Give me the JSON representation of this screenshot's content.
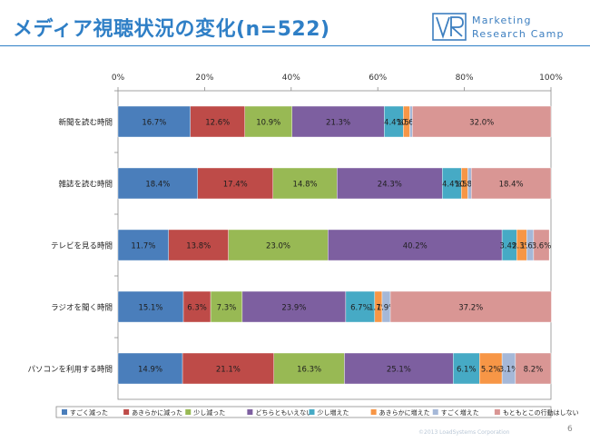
{
  "slide": {
    "title": "メディア視聴状況の変化(n=522)",
    "logo_line1": "Marketing",
    "logo_line2": "Research Camp",
    "copyright": "©2013 LoadSystems Corporation",
    "page_number": "6"
  },
  "colors": {
    "accent": "#2f7fc6",
    "series": [
      "#4a7ebb",
      "#be4b48",
      "#98b954",
      "#7d5fa0",
      "#46aac5",
      "#f79646",
      "#a5b8d8",
      "#d99694"
    ]
  },
  "chart_data": {
    "type": "bar",
    "orientation": "horizontal",
    "stacked": "percent",
    "categories": [
      "新聞を読む時間",
      "雑誌を読む時間",
      "テレビを見る時間",
      "ラジオを聞く時間",
      "パソコンを利用する時間"
    ],
    "x_ticks": [
      "0%",
      "20%",
      "40%",
      "60%",
      "80%",
      "100%"
    ],
    "xlim": [
      0,
      100
    ],
    "legend_position": "bottom",
    "grid": false,
    "series": [
      {
        "name": "すごく減った",
        "color": "#4a7ebb",
        "values": [
          16.7,
          18.4,
          11.7,
          15.1,
          14.9
        ],
        "labels": [
          "16.7%",
          "18.4%",
          "11.7%",
          "15.1%",
          "14.9%"
        ]
      },
      {
        "name": "あきらかに減った",
        "color": "#be4b48",
        "values": [
          12.6,
          17.4,
          13.8,
          6.3,
          21.1
        ],
        "labels": [
          "12.6%",
          "17.4%",
          "13.8%",
          "6.3%",
          "21.1%"
        ]
      },
      {
        "name": "少し減った",
        "color": "#98b954",
        "values": [
          10.9,
          14.8,
          23.0,
          7.3,
          16.3
        ],
        "labels": [
          "10.9%",
          "14.8%",
          "23.0%",
          "7.3%",
          "16.3%"
        ]
      },
      {
        "name": "どちらともいえない",
        "color": "#7d5fa0",
        "values": [
          21.3,
          24.3,
          40.2,
          23.9,
          25.1
        ],
        "labels": [
          "21.3%",
          "24.3%",
          "40.2%",
          "23.9%",
          "25.1%"
        ]
      },
      {
        "name": "少し増えた",
        "color": "#46aac5",
        "values": [
          4.4,
          4.4,
          3.4,
          6.7,
          6.1
        ],
        "labels": [
          "4.4%",
          "4.4%",
          "3.4%",
          "6.7%",
          "6.1%"
        ]
      },
      {
        "name": "あきらかに増えた",
        "color": "#f79646",
        "values": [
          1.5,
          1.5,
          2.3,
          1.7,
          5.2
        ],
        "labels": [
          "1.5%",
          "1.5%",
          "2.3%",
          "1.7%",
          "5.2%"
        ]
      },
      {
        "name": "すごく増えた",
        "color": "#a5b8d8",
        "values": [
          0.6,
          0.8,
          1.6,
          1.9,
          3.1
        ],
        "labels": [
          "0.6%",
          "0.8%",
          "1.6%",
          "1.9%",
          "3.1%"
        ]
      },
      {
        "name": "もともとこの行動はしない",
        "color": "#d99694",
        "values": [
          32.0,
          18.4,
          3.6,
          37.2,
          8.2
        ],
        "labels": [
          "32.0%",
          "18.4%",
          "3.6%",
          "37.2%",
          "8.2%"
        ]
      }
    ]
  }
}
